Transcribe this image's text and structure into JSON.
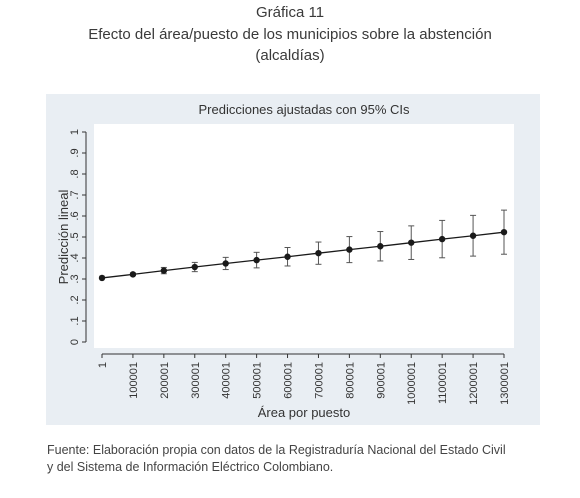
{
  "header": {
    "line1": "Gráfica 11",
    "line2": "Efecto del área/puesto de los municipios sobre la abstención",
    "line3": "(alcaldías)"
  },
  "source": {
    "line1": "Fuente: Elaboración propia con datos de la Registraduría Nacional del Estado Civil",
    "line2": "y del Sistema de Información Eléctrico Colombiano."
  },
  "chart_data": {
    "type": "line",
    "title": "Predicciones ajustadas con 95% CIs",
    "xlabel": "Área por puesto",
    "ylabel": "Predicción lineal",
    "ylim": [
      0,
      1
    ],
    "yticks": [
      "0",
      ".1",
      ".2",
      ".3",
      ".4",
      ".5",
      ".6",
      ".7",
      ".8",
      ".9",
      "1"
    ],
    "xticks": [
      "1",
      "100001",
      "200001",
      "300001",
      "400001",
      "500001",
      "600001",
      "700001",
      "800001",
      "900001",
      "1000001",
      "1100001",
      "1200001",
      "1300001"
    ],
    "x": [
      1,
      100001,
      200001,
      300001,
      400001,
      500001,
      600001,
      700001,
      800001,
      900001,
      1000001,
      1100001,
      1200001,
      1300001
    ],
    "series": [
      {
        "values": [
          0.305,
          0.322,
          0.34,
          0.357,
          0.374,
          0.39,
          0.406,
          0.423,
          0.44,
          0.456,
          0.473,
          0.49,
          0.506,
          0.523
        ],
        "ci_low": [
          0.301,
          0.316,
          0.325,
          0.335,
          0.345,
          0.353,
          0.362,
          0.37,
          0.378,
          0.386,
          0.393,
          0.401,
          0.409,
          0.418
        ],
        "ci_high": [
          0.309,
          0.328,
          0.355,
          0.379,
          0.403,
          0.427,
          0.45,
          0.476,
          0.502,
          0.526,
          0.553,
          0.579,
          0.603,
          0.628
        ]
      }
    ],
    "grid": false,
    "colors": {
      "outer_bg": "#e9eef3",
      "plot_bg": "#ffffff",
      "series": "#1a1a1a",
      "ci": "#555555"
    }
  }
}
